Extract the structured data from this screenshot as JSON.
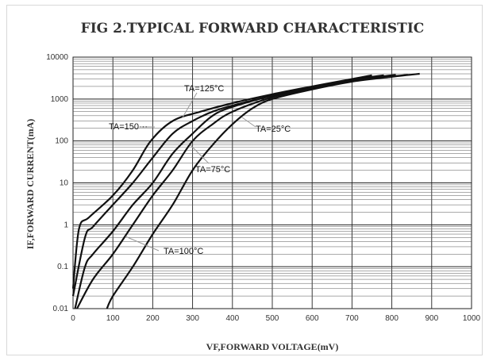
{
  "chart_data": {
    "type": "line",
    "title": "FIG 2.TYPICAL FORWARD CHARACTERISTIC",
    "xlabel": "VF,FORWARD   VOLTAGE(mV)",
    "ylabel": "IF,FORWARD   CURRENT(mA)",
    "xlim": [
      0,
      1000
    ],
    "ylim": [
      0.01,
      10000
    ],
    "yscale": "log",
    "grid": true,
    "legend": "none",
    "x_ticks": [
      "0",
      "100",
      "200",
      "300",
      "400",
      "500",
      "600",
      "700",
      "800",
      "900",
      "1000"
    ],
    "y_ticks": [
      "0.01",
      "0.1",
      "1",
      "10",
      "100",
      "1000",
      "10000"
    ],
    "series": [
      {
        "name": "TA=150°C",
        "points": [
          [
            0,
            0.03
          ],
          [
            15,
            0.8
          ],
          [
            40,
            1.5
          ],
          [
            100,
            5
          ],
          [
            150,
            20
          ],
          [
            195,
            100
          ],
          [
            250,
            300
          ],
          [
            320,
            500
          ],
          [
            400,
            800
          ],
          [
            500,
            1300
          ],
          [
            600,
            2000
          ],
          [
            700,
            3000
          ],
          [
            750,
            3700
          ]
        ]
      },
      {
        "name": "TA=125°C",
        "points": [
          [
            0,
            0.02
          ],
          [
            30,
            0.5
          ],
          [
            50,
            0.9
          ],
          [
            100,
            3
          ],
          [
            150,
            10
          ],
          [
            200,
            40
          ],
          [
            250,
            150
          ],
          [
            300,
            300
          ],
          [
            350,
            500
          ],
          [
            400,
            700
          ],
          [
            500,
            1200
          ],
          [
            600,
            1900
          ],
          [
            700,
            2900
          ],
          [
            780,
            3700
          ]
        ]
      },
      {
        "name": "TA=100°C",
        "points": [
          [
            5,
            0.01
          ],
          [
            30,
            0.1
          ],
          [
            50,
            0.2
          ],
          [
            100,
            0.7
          ],
          [
            150,
            3
          ],
          [
            200,
            10
          ],
          [
            250,
            50
          ],
          [
            300,
            150
          ],
          [
            350,
            400
          ],
          [
            400,
            650
          ],
          [
            500,
            1200
          ],
          [
            600,
            1900
          ],
          [
            700,
            2800
          ],
          [
            810,
            3800
          ]
        ]
      },
      {
        "name": "TA=75°C",
        "points": [
          [
            10,
            0.01
          ],
          [
            50,
            0.05
          ],
          [
            100,
            0.2
          ],
          [
            150,
            1
          ],
          [
            200,
            5
          ],
          [
            250,
            20
          ],
          [
            300,
            100
          ],
          [
            350,
            250
          ],
          [
            400,
            500
          ],
          [
            500,
            1100
          ],
          [
            600,
            1800
          ],
          [
            700,
            2700
          ],
          [
            840,
            3800
          ]
        ]
      },
      {
        "name": "TA=25°C",
        "points": [
          [
            85,
            0.01
          ],
          [
            100,
            0.02
          ],
          [
            150,
            0.1
          ],
          [
            200,
            0.6
          ],
          [
            250,
            3
          ],
          [
            300,
            20
          ],
          [
            350,
            80
          ],
          [
            400,
            250
          ],
          [
            450,
            600
          ],
          [
            500,
            1000
          ],
          [
            600,
            1700
          ],
          [
            700,
            2600
          ],
          [
            800,
            3400
          ],
          [
            870,
            4000
          ]
        ]
      }
    ],
    "annotations": [
      {
        "text": "TA=125°C"
      },
      {
        "text": "TA=150···"
      },
      {
        "text": "TA=25°C"
      },
      {
        "text": "TA=75°C"
      },
      {
        "text": "TA=100°C"
      }
    ]
  }
}
